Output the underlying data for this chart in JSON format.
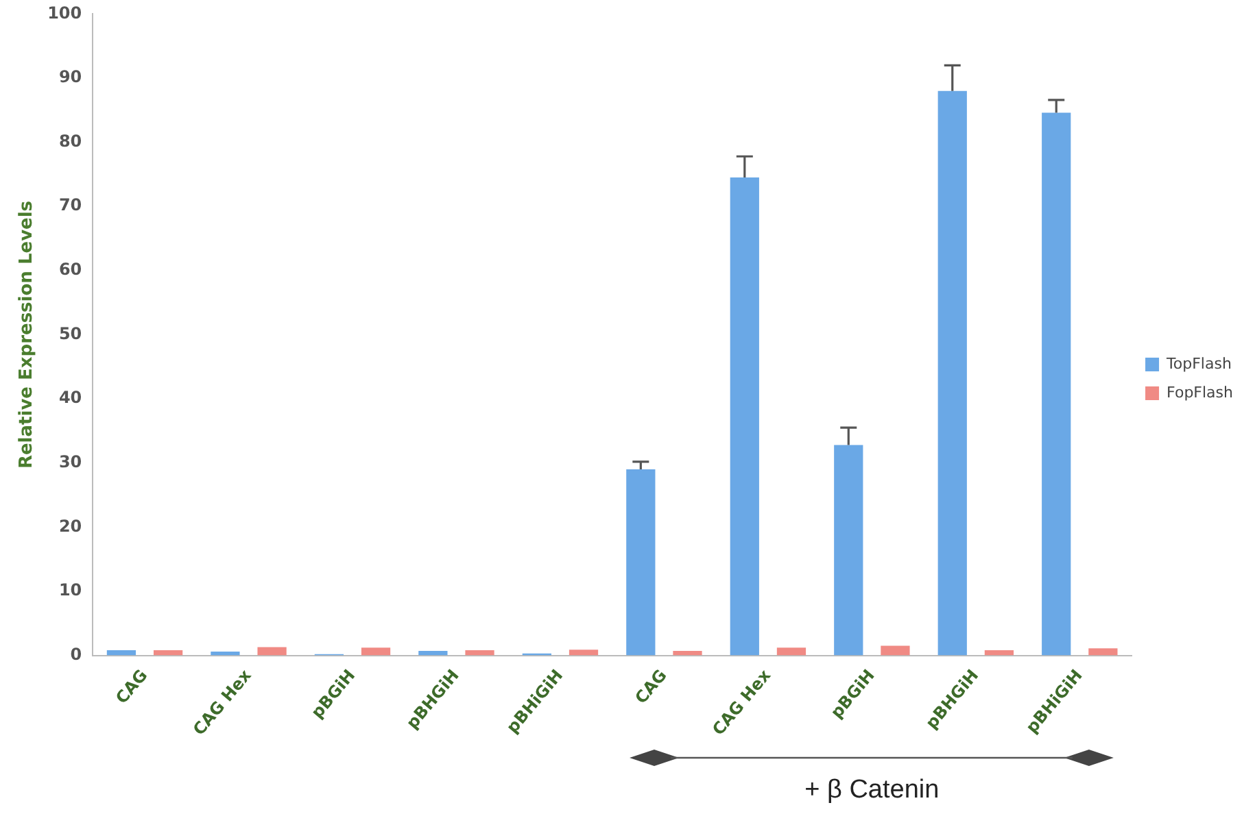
{
  "chart_data": {
    "type": "bar",
    "ylabel": "Relative Expression Levels",
    "categories": [
      "CAG",
      "CAG Hex",
      "pBGiH",
      "pBHGiH",
      "pBHiGiH",
      "CAG",
      "CAG Hex",
      "pBGiH",
      "pBHGiH",
      "pBHiGiH"
    ],
    "series": [
      {
        "name": "TopFlash",
        "color": "#6aa8e6",
        "values": [
          0.8,
          0.6,
          0.2,
          0.7,
          0.3,
          29,
          74.5,
          32.8,
          88,
          84.6
        ],
        "errors": [
          null,
          null,
          null,
          null,
          null,
          1.2,
          3.3,
          2.7,
          4,
          2
        ]
      },
      {
        "name": "FopFlash",
        "color": "#f08a84",
        "values": [
          0.8,
          1.3,
          1.2,
          0.8,
          0.9,
          0.7,
          1.2,
          1.5,
          0.8,
          1.1
        ]
      }
    ],
    "ylim": [
      0,
      100
    ],
    "yticks": [
      0,
      10,
      20,
      30,
      40,
      50,
      60,
      70,
      80,
      90,
      100
    ],
    "grid": false,
    "legend": "right",
    "annotations": [
      "+ β Catenin"
    ]
  }
}
